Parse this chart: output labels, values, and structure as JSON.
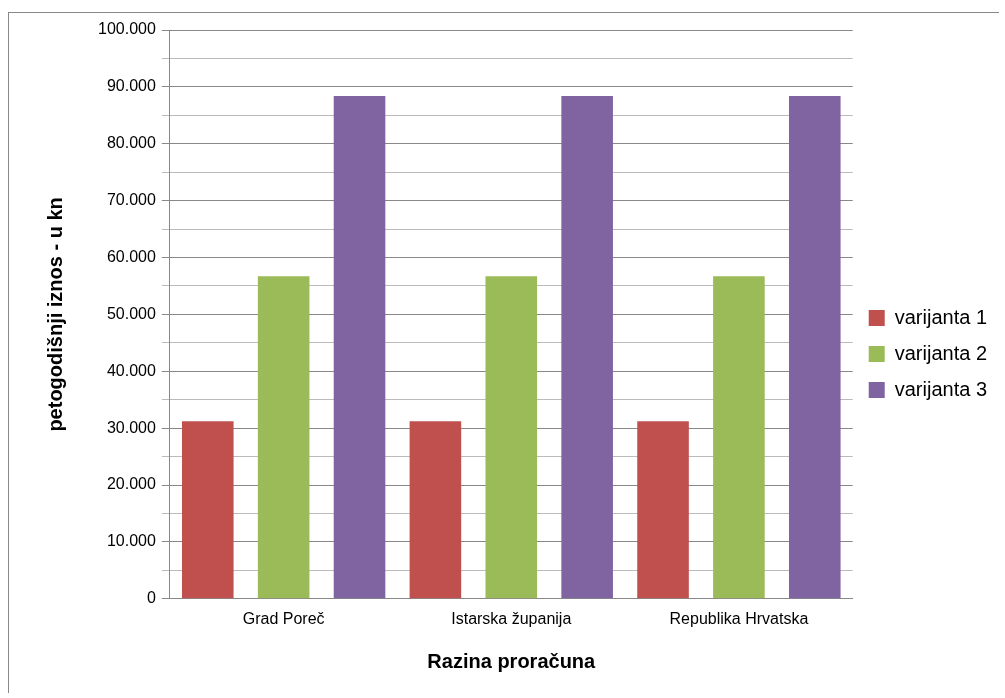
{
  "chart_data": {
    "type": "bar",
    "xlabel": "Razina proračuna",
    "ylabel": "petogodišnji iznos - u kn",
    "categories": [
      "Grad Poreč",
      "Istarska županija",
      "Republika Hrvatska"
    ],
    "series": [
      {
        "name": "varijanta 1",
        "color": "#c0504d",
        "values": [
          31200,
          31200,
          31200
        ]
      },
      {
        "name": "varijanta 2",
        "color": "#9bbb59",
        "values": [
          56700,
          56700,
          56700
        ]
      },
      {
        "name": "varijanta 3",
        "color": "#8064a2",
        "values": [
          88400,
          88400,
          88400
        ]
      }
    ],
    "ylim": [
      0,
      100000
    ],
    "yticks": [
      0,
      {
        "value": 5000,
        "label": null
      },
      {
        "value": 10000,
        "label": "10.000"
      },
      {
        "value": 15000,
        "label": null
      },
      {
        "value": 20000,
        "label": "20.000"
      },
      {
        "value": 25000,
        "label": null
      },
      {
        "value": 30000,
        "label": "30.000"
      },
      {
        "value": 35000,
        "label": null
      },
      {
        "value": 40000,
        "label": "40.000"
      },
      {
        "value": 45000,
        "label": null
      },
      {
        "value": 50000,
        "label": "50.000"
      },
      {
        "value": 55000,
        "label": null
      },
      {
        "value": 60000,
        "label": "60.000"
      },
      {
        "value": 65000,
        "label": null
      },
      {
        "value": 70000,
        "label": "70.000"
      },
      {
        "value": 75000,
        "label": null
      },
      {
        "value": 80000,
        "label": "80.000"
      },
      {
        "value": 85000,
        "label": null
      },
      {
        "value": 90000,
        "label": "90.000"
      },
      {
        "value": 95000,
        "label": null
      },
      {
        "value": 100000,
        "label": "100.000"
      }
    ],
    "grid": "y",
    "legend": "right"
  }
}
